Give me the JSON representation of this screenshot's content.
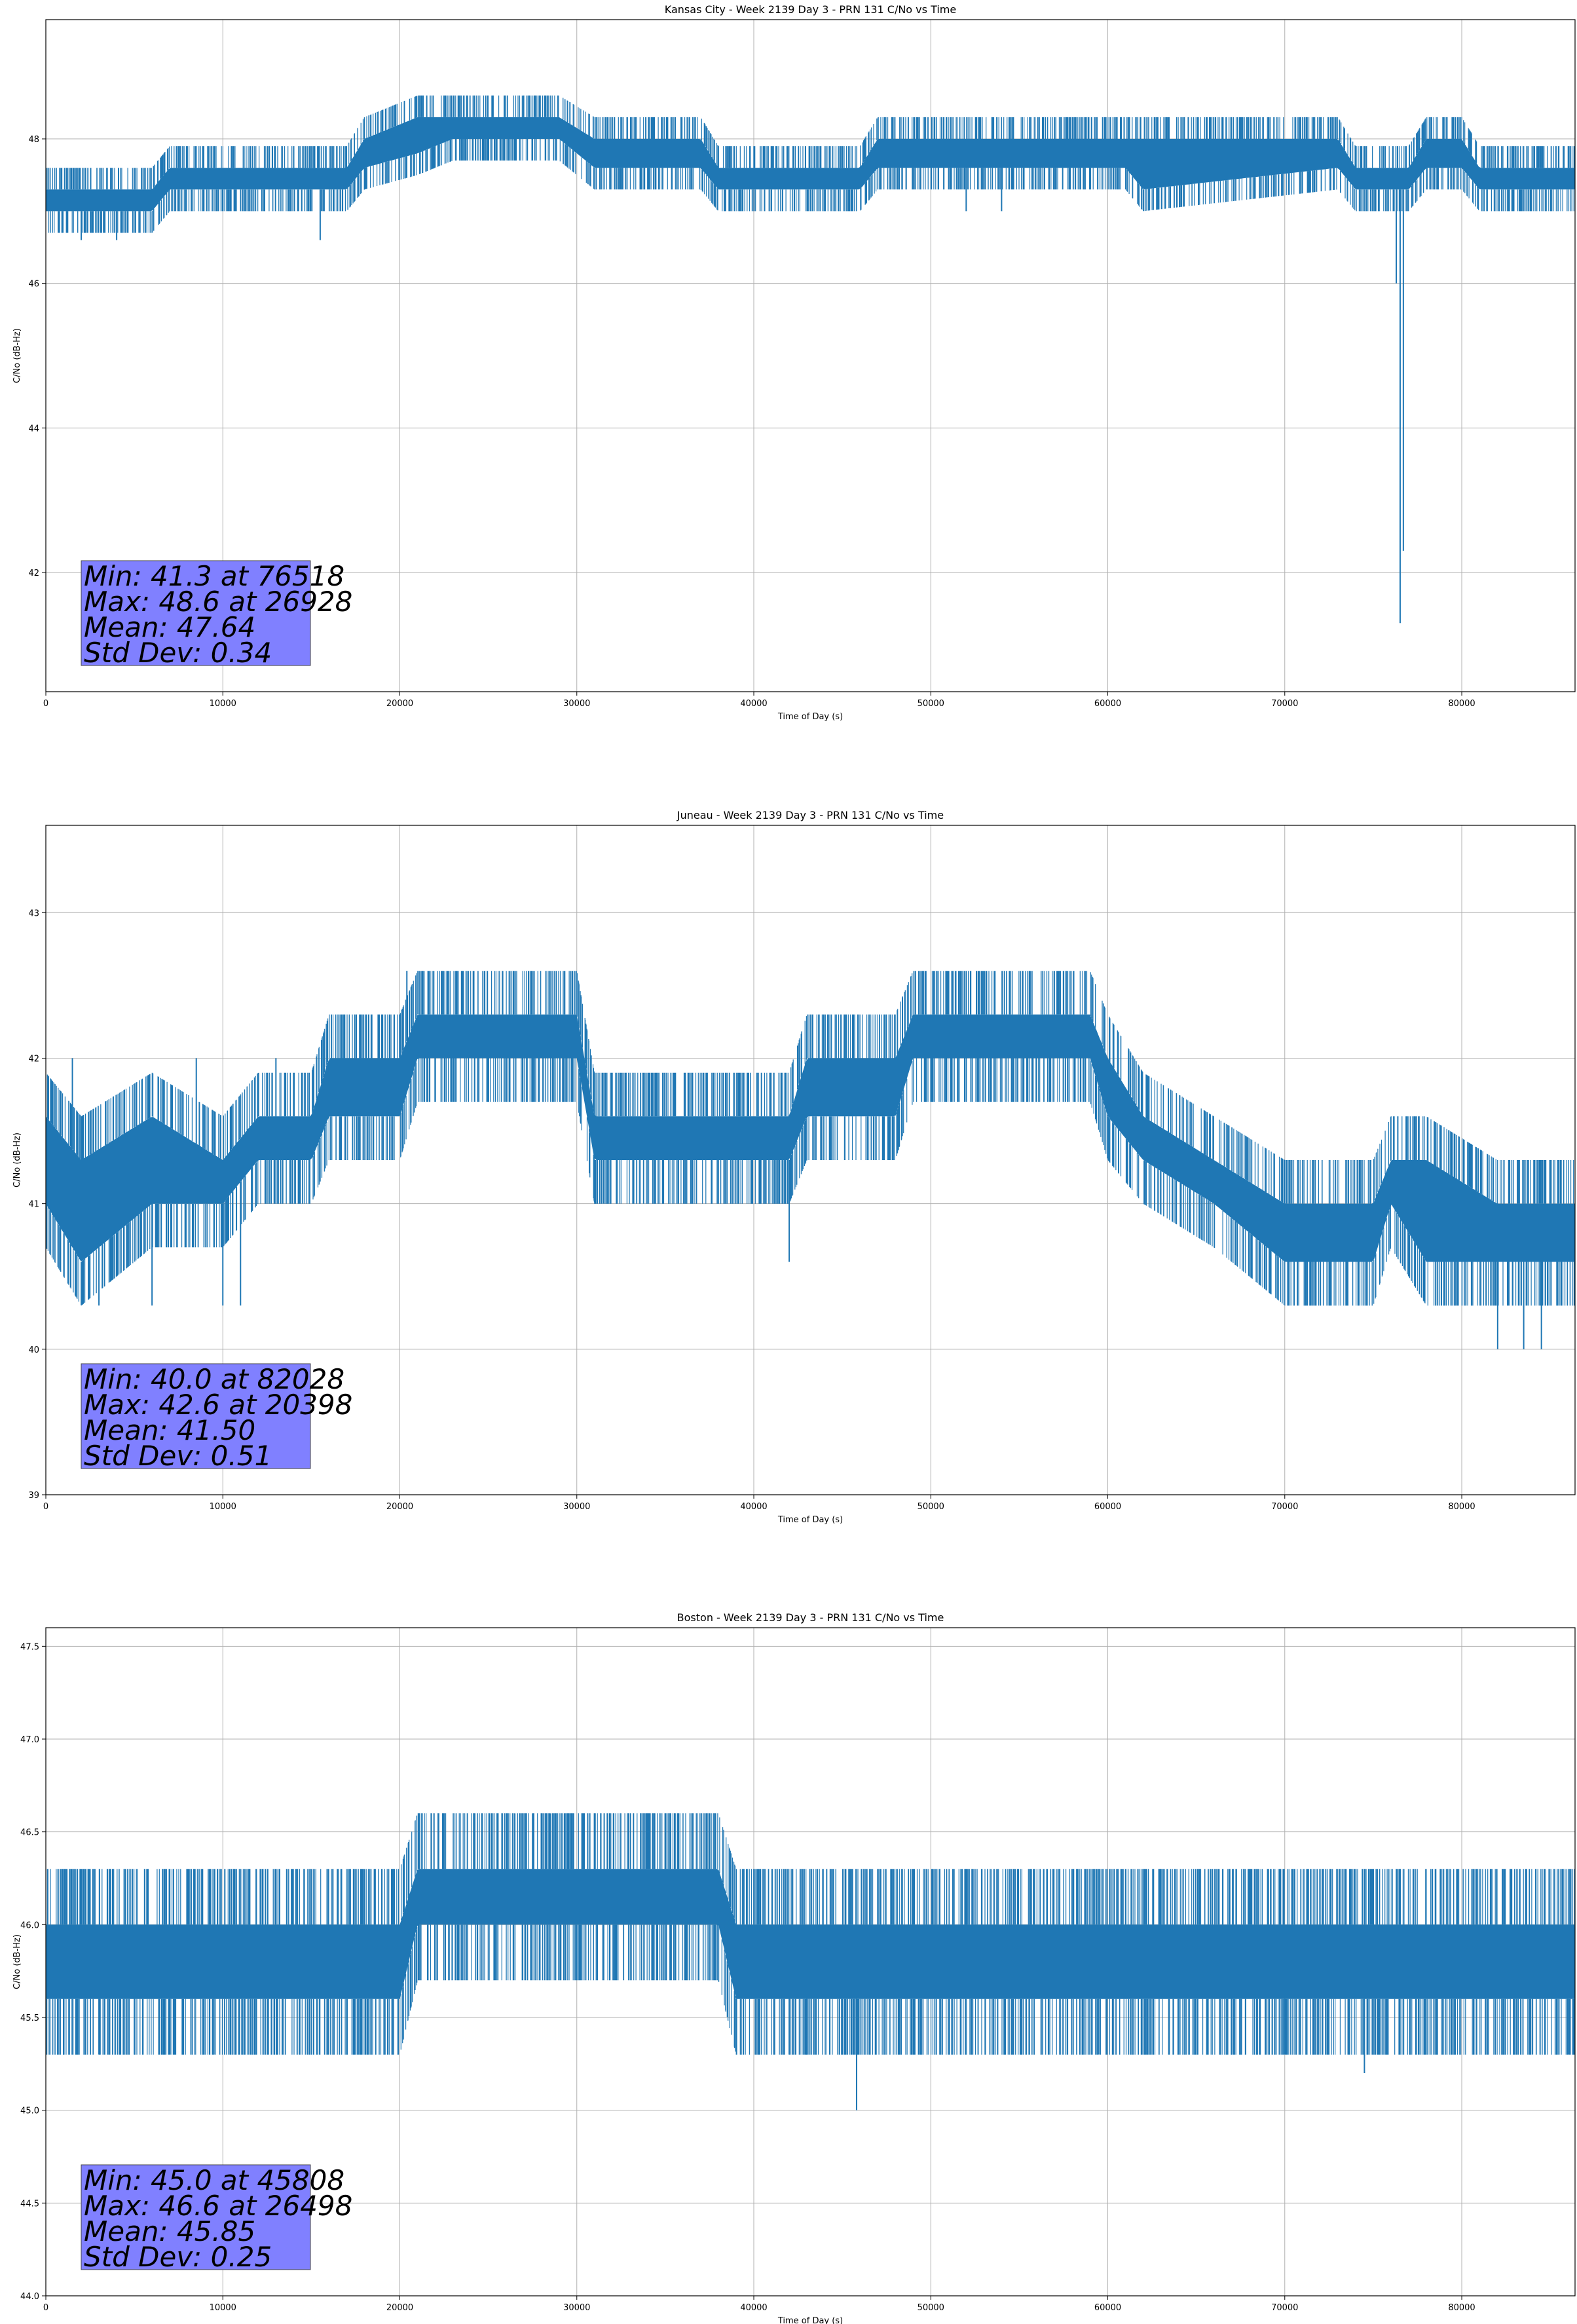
{
  "chart_data": [
    {
      "type": "line",
      "title": "Kansas City - Week 2139 Day 3 - PRN 131 C/No vs Time",
      "xlabel": "Time of Day (s)",
      "ylabel": "C/No (dB-Hz)",
      "xlim": [
        0,
        86400
      ],
      "ylim": [
        40.35,
        49.65
      ],
      "xticks": [
        0,
        10000,
        20000,
        30000,
        40000,
        50000,
        60000,
        70000,
        80000
      ],
      "yticks": [
        42,
        44,
        46,
        48
      ],
      "ytick_labels": [
        "42",
        "44",
        "46",
        "48"
      ],
      "grid": true,
      "color": "#1f77b4",
      "stats": [
        "Min: 41.3 at 76518",
        "Max: 48.6 at 26928",
        "Mean: 47.64",
        "Std Dev: 0.34"
      ],
      "series": [
        {
          "values_step": 0.3,
          "envelope": [
            {
              "x": 0,
              "y_low": 47.0,
              "y_high": 47.3
            },
            {
              "x": 6000,
              "y_low": 47.0,
              "y_high": 47.3
            },
            {
              "x": 7000,
              "y_low": 47.3,
              "y_high": 47.6
            },
            {
              "x": 17000,
              "y_low": 47.3,
              "y_high": 47.6
            },
            {
              "x": 18000,
              "y_low": 47.6,
              "y_high": 48.0
            },
            {
              "x": 21000,
              "y_low": 47.8,
              "y_high": 48.3
            },
            {
              "x": 23000,
              "y_low": 48.0,
              "y_high": 48.3
            },
            {
              "x": 29000,
              "y_low": 48.0,
              "y_high": 48.3
            },
            {
              "x": 31000,
              "y_low": 47.6,
              "y_high": 48.0
            },
            {
              "x": 37000,
              "y_low": 47.6,
              "y_high": 48.0
            },
            {
              "x": 38000,
              "y_low": 47.3,
              "y_high": 47.6
            },
            {
              "x": 46000,
              "y_low": 47.3,
              "y_high": 47.6
            },
            {
              "x": 47000,
              "y_low": 47.6,
              "y_high": 48.0
            },
            {
              "x": 61000,
              "y_low": 47.6,
              "y_high": 48.0
            },
            {
              "x": 62000,
              "y_low": 47.3,
              "y_high": 48.0
            },
            {
              "x": 73000,
              "y_low": 47.6,
              "y_high": 48.0
            },
            {
              "x": 74000,
              "y_low": 47.3,
              "y_high": 47.6
            },
            {
              "x": 77000,
              "y_low": 47.3,
              "y_high": 47.6
            },
            {
              "x": 78000,
              "y_low": 47.6,
              "y_high": 48.0
            },
            {
              "x": 80000,
              "y_low": 47.6,
              "y_high": 48.0
            },
            {
              "x": 81000,
              "y_low": 47.3,
              "y_high": 47.6
            },
            {
              "x": 86400,
              "y_low": 47.3,
              "y_high": 47.6
            }
          ],
          "spikes": [
            {
              "x": 76518,
              "y": 41.3
            },
            {
              "x": 26928,
              "y": 48.6
            },
            {
              "x": 2000,
              "y": 46.6
            },
            {
              "x": 4000,
              "y": 46.6
            },
            {
              "x": 15500,
              "y": 46.6
            },
            {
              "x": 41000,
              "y": 47.0
            },
            {
              "x": 52000,
              "y": 47.0
            },
            {
              "x": 54000,
              "y": 47.0
            },
            {
              "x": 76300,
              "y": 46.0
            },
            {
              "x": 76700,
              "y": 42.3
            }
          ]
        }
      ]
    },
    {
      "type": "line",
      "title": "Juneau - Week 2139 Day 3 - PRN 131 C/No vs Time",
      "xlabel": "Time of Day (s)",
      "ylabel": "C/No (dB-Hz)",
      "xlim": [
        0,
        86400
      ],
      "ylim": [
        39.0,
        43.6
      ],
      "xticks": [
        0,
        10000,
        20000,
        30000,
        40000,
        50000,
        60000,
        70000,
        80000
      ],
      "yticks": [
        39,
        40,
        41,
        42,
        43
      ],
      "ytick_labels": [
        "39",
        "40",
        "41",
        "42",
        "43"
      ],
      "grid": true,
      "color": "#1f77b4",
      "stats": [
        "Min: 40.0 at 82028",
        "Max: 42.6 at 20398",
        "Mean: 41.50",
        "Std Dev: 0.51"
      ],
      "series": [
        {
          "values_step": 0.3,
          "envelope": [
            {
              "x": 0,
              "y_low": 41.0,
              "y_high": 41.6
            },
            {
              "x": 2000,
              "y_low": 40.6,
              "y_high": 41.3
            },
            {
              "x": 6000,
              "y_low": 41.0,
              "y_high": 41.6
            },
            {
              "x": 10000,
              "y_low": 41.0,
              "y_high": 41.3
            },
            {
              "x": 12000,
              "y_low": 41.3,
              "y_high": 41.6
            },
            {
              "x": 15000,
              "y_low": 41.3,
              "y_high": 41.6
            },
            {
              "x": 16000,
              "y_low": 41.6,
              "y_high": 42.0
            },
            {
              "x": 20000,
              "y_low": 41.6,
              "y_high": 42.0
            },
            {
              "x": 21000,
              "y_low": 42.0,
              "y_high": 42.3
            },
            {
              "x": 30000,
              "y_low": 42.0,
              "y_high": 42.3
            },
            {
              "x": 31000,
              "y_low": 41.3,
              "y_high": 41.6
            },
            {
              "x": 42000,
              "y_low": 41.3,
              "y_high": 41.6
            },
            {
              "x": 43000,
              "y_low": 41.6,
              "y_high": 42.0
            },
            {
              "x": 48000,
              "y_low": 41.6,
              "y_high": 42.0
            },
            {
              "x": 49000,
              "y_low": 42.0,
              "y_high": 42.3
            },
            {
              "x": 59000,
              "y_low": 42.0,
              "y_high": 42.3
            },
            {
              "x": 60000,
              "y_low": 41.6,
              "y_high": 42.0
            },
            {
              "x": 62000,
              "y_low": 41.3,
              "y_high": 41.6
            },
            {
              "x": 66000,
              "y_low": 41.0,
              "y_high": 41.3
            },
            {
              "x": 70000,
              "y_low": 40.6,
              "y_high": 41.0
            },
            {
              "x": 75000,
              "y_low": 40.6,
              "y_high": 41.0
            },
            {
              "x": 76000,
              "y_low": 41.0,
              "y_high": 41.3
            },
            {
              "x": 78000,
              "y_low": 40.6,
              "y_high": 41.3
            },
            {
              "x": 82000,
              "y_low": 40.6,
              "y_high": 41.0
            },
            {
              "x": 86400,
              "y_low": 40.6,
              "y_high": 41.0
            }
          ],
          "spikes": [
            {
              "x": 82028,
              "y": 40.0
            },
            {
              "x": 20398,
              "y": 42.6
            },
            {
              "x": 1500,
              "y": 42.0
            },
            {
              "x": 3000,
              "y": 40.3
            },
            {
              "x": 6000,
              "y": 40.3
            },
            {
              "x": 10000,
              "y": 40.3
            },
            {
              "x": 11000,
              "y": 40.3
            },
            {
              "x": 8500,
              "y": 42.0
            },
            {
              "x": 13000,
              "y": 42.0
            },
            {
              "x": 31500,
              "y": 41.0
            },
            {
              "x": 42000,
              "y": 40.6
            },
            {
              "x": 84500,
              "y": 40.0
            },
            {
              "x": 83500,
              "y": 40.0
            }
          ]
        }
      ]
    },
    {
      "type": "line",
      "title": "Boston - Week 2139 Day 3 - PRN 131 C/No vs Time",
      "xlabel": "Time of Day (s)",
      "ylabel": "C/No (dB-Hz)",
      "xlim": [
        0,
        86400
      ],
      "ylim": [
        44.0,
        47.6
      ],
      "xticks": [
        0,
        10000,
        20000,
        30000,
        40000,
        50000,
        60000,
        70000,
        80000
      ],
      "yticks": [
        44.0,
        44.5,
        45.0,
        45.5,
        46.0,
        46.5,
        47.0,
        47.5
      ],
      "ytick_labels": [
        "44.0",
        "44.5",
        "45.0",
        "45.5",
        "46.0",
        "46.5",
        "47.0",
        "47.5"
      ],
      "grid": true,
      "color": "#1f77b4",
      "stats": [
        "Min: 45.0 at 45808",
        "Max: 46.6 at 26498",
        "Mean: 45.85",
        "Std Dev: 0.25"
      ],
      "series": [
        {
          "values_step": 0.3,
          "envelope": [
            {
              "x": 0,
              "y_low": 45.6,
              "y_high": 46.0
            },
            {
              "x": 10000,
              "y_low": 45.6,
              "y_high": 46.0
            },
            {
              "x": 11000,
              "y_low": 45.6,
              "y_high": 46.0
            },
            {
              "x": 20000,
              "y_low": 45.6,
              "y_high": 46.0
            },
            {
              "x": 21000,
              "y_low": 46.0,
              "y_high": 46.3
            },
            {
              "x": 38000,
              "y_low": 46.0,
              "y_high": 46.3
            },
            {
              "x": 39000,
              "y_low": 45.6,
              "y_high": 46.0
            },
            {
              "x": 86400,
              "y_low": 45.6,
              "y_high": 46.0
            }
          ],
          "spikes": [
            {
              "x": 45808,
              "y": 45.0
            },
            {
              "x": 26498,
              "y": 46.6
            },
            {
              "x": 27500,
              "y": 46.6
            },
            {
              "x": 28500,
              "y": 46.6
            },
            {
              "x": 29300,
              "y": 46.6
            },
            {
              "x": 1000,
              "y": 45.3
            },
            {
              "x": 3000,
              "y": 45.3
            },
            {
              "x": 5000,
              "y": 45.3
            },
            {
              "x": 7000,
              "y": 45.3
            },
            {
              "x": 9500,
              "y": 45.3
            },
            {
              "x": 11500,
              "y": 46.3
            },
            {
              "x": 15000,
              "y": 46.3
            },
            {
              "x": 18000,
              "y": 46.3
            },
            {
              "x": 42000,
              "y": 45.3
            },
            {
              "x": 43000,
              "y": 45.3
            },
            {
              "x": 59500,
              "y": 45.3
            },
            {
              "x": 67000,
              "y": 45.3
            },
            {
              "x": 70000,
              "y": 45.3
            },
            {
              "x": 74500,
              "y": 45.2
            },
            {
              "x": 84000,
              "y": 45.3
            },
            {
              "x": 86000,
              "y": 45.3
            },
            {
              "x": 52000,
              "y": 46.3
            },
            {
              "x": 63000,
              "y": 46.3
            },
            {
              "x": 75000,
              "y": 46.3
            }
          ]
        }
      ]
    }
  ]
}
